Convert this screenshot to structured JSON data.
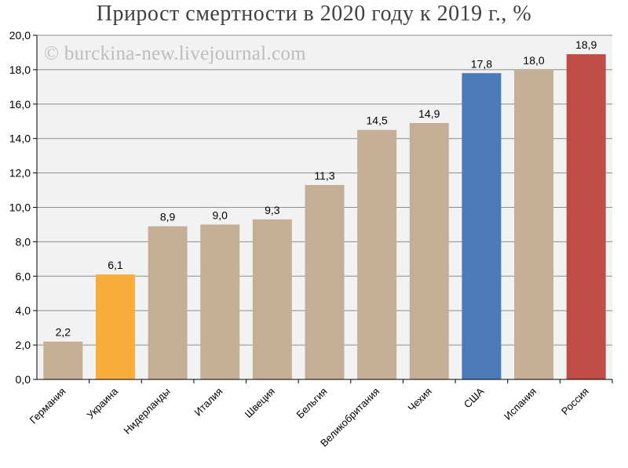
{
  "chart_data": {
    "type": "bar",
    "title": "Прирост смертности в 2020 году к 2019 г., %",
    "watermark": "© burckina-new.livejournal.com",
    "categories": [
      "Германия",
      "Украина",
      "Нидерланды",
      "Италия",
      "Швеция",
      "Бельгия",
      "Великобритания",
      "Чехия",
      "США",
      "Испания",
      "Россия"
    ],
    "values": [
      2.2,
      6.1,
      8.9,
      9.0,
      9.3,
      11.3,
      14.5,
      14.9,
      17.8,
      18.0,
      18.9
    ],
    "data_labels": [
      "2,2",
      "6,1",
      "8,9",
      "9,0",
      "9,3",
      "11,3",
      "14,5",
      "14,9",
      "17,8",
      "18,0",
      "18,9"
    ],
    "colors": [
      "#c4ae95",
      "#f9ad3a",
      "#c4ae95",
      "#c4ae95",
      "#c4ae95",
      "#c4ae95",
      "#c4ae95",
      "#c4ae95",
      "#4a7bb8",
      "#c4ae95",
      "#c04b47"
    ],
    "ylim": [
      0,
      20
    ],
    "yticks": [
      0,
      2,
      4,
      6,
      8,
      10,
      12,
      14,
      16,
      18,
      20
    ],
    "ytick_labels": [
      "0,0",
      "2,0",
      "4,0",
      "6,0",
      "8,0",
      "10,0",
      "12,0",
      "14,0",
      "16,0",
      "18,0",
      "20,0"
    ],
    "grid": true,
    "plot_background": "#f2f2f2",
    "xlabel": "",
    "ylabel": ""
  }
}
